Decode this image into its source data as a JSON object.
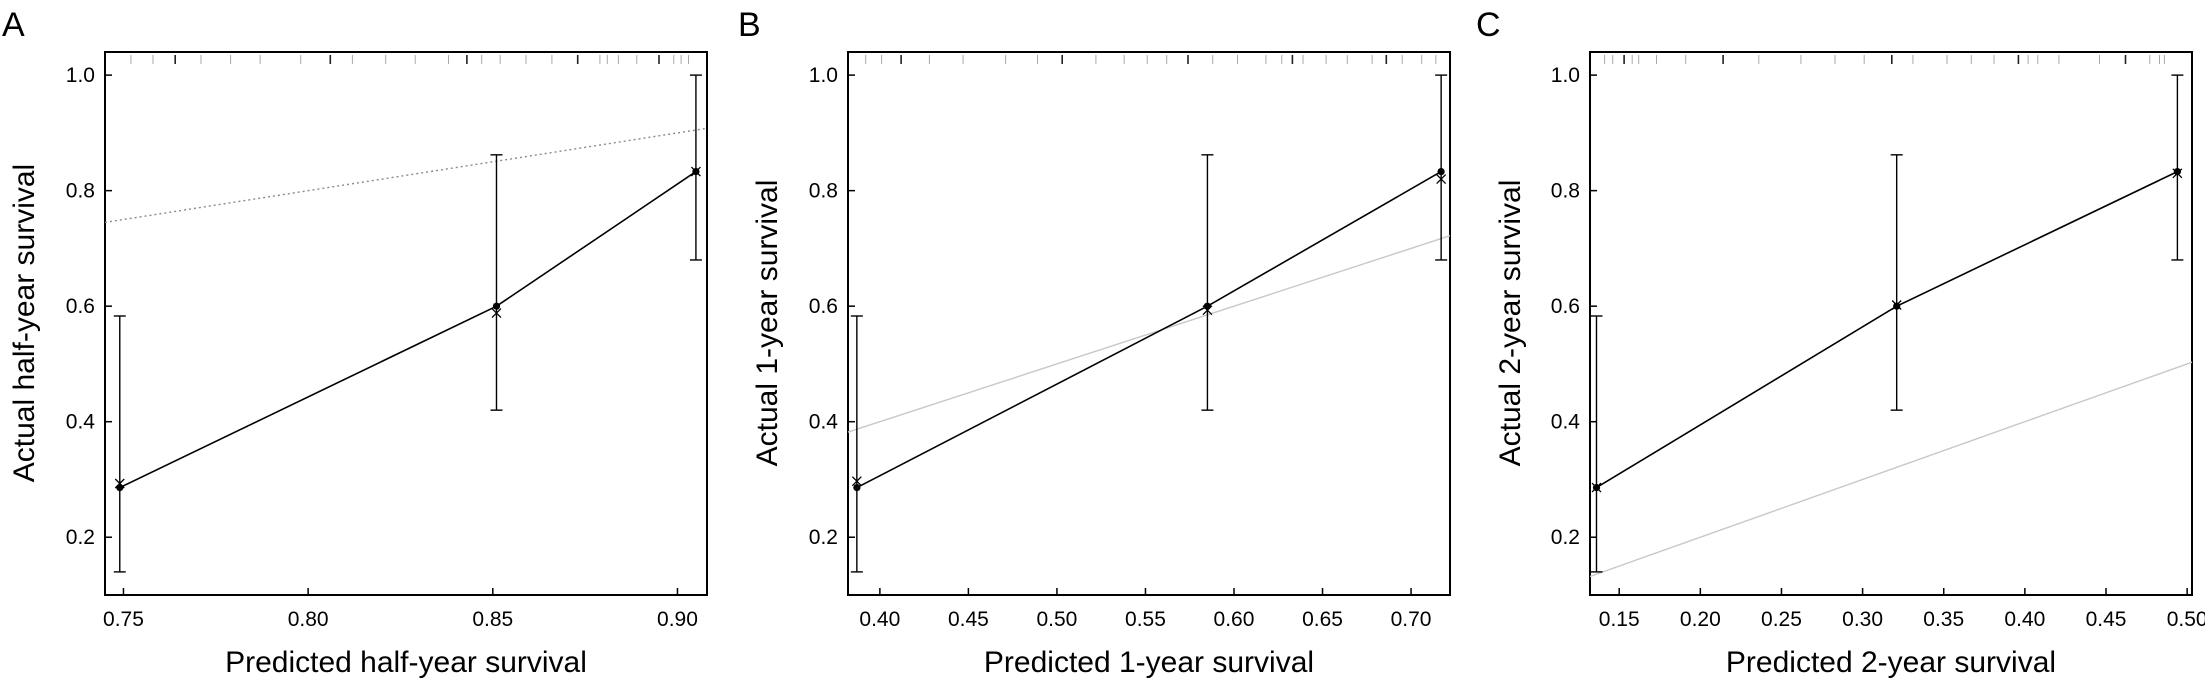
{
  "chart_data": [
    {
      "panel": "A",
      "type": "line",
      "xlabel": "Predicted half-year survival",
      "ylabel": "Actual half-year survival",
      "xlim": [
        0.745,
        0.908
      ],
      "ylim": [
        0.1,
        1.04
      ],
      "xticks": [
        0.75,
        0.8,
        0.85,
        0.9
      ],
      "xtick_labels": [
        "0.75",
        "0.80",
        "0.85",
        "0.90"
      ],
      "yticks": [
        0.2,
        0.4,
        0.6,
        0.8,
        1.0
      ],
      "ytick_labels": [
        "0.2",
        "0.4",
        "0.6",
        "0.8",
        "1.0"
      ],
      "observed": {
        "x": [
          0.749,
          0.851,
          0.905
        ],
        "y": [
          0.286,
          0.6,
          0.833
        ]
      },
      "bias_corrected": {
        "x": [
          0.749,
          0.851,
          0.905
        ],
        "y": [
          0.293,
          0.588,
          0.833
        ]
      },
      "error_bars": [
        {
          "x": 0.749,
          "lower": 0.14,
          "upper": 0.583
        },
        {
          "x": 0.851,
          "lower": 0.42,
          "upper": 0.862
        },
        {
          "x": 0.905,
          "lower": 0.68,
          "upper": 1.0
        }
      ],
      "ideal_line": {
        "x": [
          0.745,
          0.908
        ],
        "y": [
          0.745,
          0.908
        ]
      },
      "rug": [
        0.752,
        0.758,
        0.764,
        0.771,
        0.779,
        0.787,
        0.798,
        0.806,
        0.812,
        0.821,
        0.829,
        0.838,
        0.843,
        0.847,
        0.852,
        0.859,
        0.866,
        0.873,
        0.879,
        0.881,
        0.884,
        0.889,
        0.895,
        0.899,
        0.901,
        0.903
      ]
    },
    {
      "panel": "B",
      "type": "line",
      "xlabel": "Predicted 1-year survival",
      "ylabel": "Actual 1-year survival",
      "xlim": [
        0.382,
        0.722
      ],
      "ylim": [
        0.1,
        1.04
      ],
      "xticks": [
        0.4,
        0.45,
        0.5,
        0.55,
        0.6,
        0.65,
        0.7
      ],
      "xtick_labels": [
        "0.40",
        "0.45",
        "0.50",
        "0.55",
        "0.60",
        "0.65",
        "0.70"
      ],
      "yticks": [
        0.2,
        0.4,
        0.6,
        0.8,
        1.0
      ],
      "ytick_labels": [
        "0.2",
        "0.4",
        "0.6",
        "0.8",
        "1.0"
      ],
      "observed": {
        "x": [
          0.387,
          0.585,
          0.717
        ],
        "y": [
          0.286,
          0.6,
          0.833
        ]
      },
      "bias_corrected": {
        "x": [
          0.387,
          0.585,
          0.717
        ],
        "y": [
          0.297,
          0.593,
          0.82
        ]
      },
      "error_bars": [
        {
          "x": 0.387,
          "lower": 0.14,
          "upper": 0.583
        },
        {
          "x": 0.585,
          "lower": 0.42,
          "upper": 0.862
        },
        {
          "x": 0.717,
          "lower": 0.68,
          "upper": 1.0
        }
      ],
      "ideal_line": {
        "x": [
          0.382,
          0.722
        ],
        "y": [
          0.382,
          0.722
        ]
      },
      "rug": [
        0.392,
        0.401,
        0.412,
        0.428,
        0.447,
        0.471,
        0.489,
        0.503,
        0.522,
        0.538,
        0.551,
        0.562,
        0.574,
        0.588,
        0.602,
        0.618,
        0.627,
        0.633,
        0.639,
        0.652,
        0.664,
        0.678,
        0.686,
        0.695,
        0.706,
        0.714
      ]
    },
    {
      "panel": "C",
      "type": "line",
      "xlabel": "Predicted 2-year survival",
      "ylabel": "Actual 2-year survival",
      "xlim": [
        0.132,
        0.503
      ],
      "ylim": [
        0.1,
        1.04
      ],
      "xticks": [
        0.15,
        0.2,
        0.25,
        0.3,
        0.35,
        0.4,
        0.45,
        0.5
      ],
      "xtick_labels": [
        "0.15",
        "0.20",
        "0.25",
        "0.30",
        "0.35",
        "0.40",
        "0.45",
        "0.50"
      ],
      "yticks": [
        0.2,
        0.4,
        0.6,
        0.8,
        1.0
      ],
      "ytick_labels": [
        "0.2",
        "0.4",
        "0.6",
        "0.8",
        "1.0"
      ],
      "observed": {
        "x": [
          0.136,
          0.321,
          0.494
        ],
        "y": [
          0.286,
          0.6,
          0.833
        ]
      },
      "bias_corrected": {
        "x": [
          0.136,
          0.321,
          0.494
        ],
        "y": [
          0.286,
          0.602,
          0.83
        ]
      },
      "error_bars": [
        {
          "x": 0.136,
          "lower": 0.14,
          "upper": 0.583
        },
        {
          "x": 0.321,
          "lower": 0.42,
          "upper": 0.862
        },
        {
          "x": 0.494,
          "lower": 0.68,
          "upper": 1.0
        }
      ],
      "ideal_line": {
        "x": [
          0.132,
          0.503
        ],
        "y": [
          0.132,
          0.503
        ]
      },
      "rug": [
        0.141,
        0.146,
        0.153,
        0.158,
        0.162,
        0.173,
        0.191,
        0.214,
        0.236,
        0.262,
        0.283,
        0.301,
        0.318,
        0.331,
        0.352,
        0.367,
        0.381,
        0.396,
        0.402,
        0.408,
        0.421,
        0.446,
        0.462,
        0.477,
        0.483,
        0.486
      ]
    }
  ]
}
